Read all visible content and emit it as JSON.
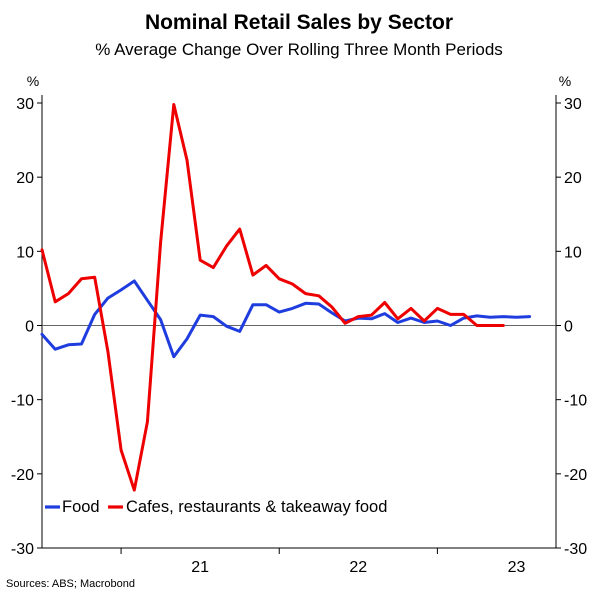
{
  "chart_data": {
    "type": "line",
    "title": "Nominal Retail Sales by Sector",
    "subtitle": "% Average Change Over Rolling Three Month Periods",
    "y_unit_left": "%",
    "y_unit_right": "%",
    "ylim": [
      -30,
      30
    ],
    "yticks": [
      30,
      20,
      10,
      0,
      -10,
      -20,
      -30
    ],
    "xlim": [
      "2020-07",
      "2023-10"
    ],
    "year_labels": [
      {
        "label": "21",
        "x": "2021-07"
      },
      {
        "label": "22",
        "x": "2022-07"
      },
      {
        "label": "23",
        "x": "2023-07"
      }
    ],
    "year_boundaries": [
      "2021-01",
      "2022-01",
      "2023-01"
    ],
    "grid": false,
    "zero_line": true,
    "legend_position": "bottom-left",
    "x": [
      "2020-07",
      "2020-08",
      "2020-09",
      "2020-10",
      "2020-11",
      "2020-12",
      "2021-01",
      "2021-02",
      "2021-03",
      "2021-04",
      "2021-05",
      "2021-06",
      "2021-07",
      "2021-08",
      "2021-09",
      "2021-10",
      "2021-11",
      "2021-12",
      "2022-01",
      "2022-02",
      "2022-03",
      "2022-04",
      "2022-05",
      "2022-06",
      "2022-07",
      "2022-08",
      "2022-09",
      "2022-10",
      "2022-11",
      "2022-12",
      "2023-01",
      "2023-02",
      "2023-03",
      "2023-04",
      "2023-05",
      "2023-06",
      "2023-07",
      "2023-08",
      "2023-09"
    ],
    "series": [
      {
        "name": "Food",
        "color": "#1f3ddf",
        "values": [
          -1.2,
          -3.2,
          -2.6,
          -2.5,
          1.5,
          3.7,
          4.8,
          6.0,
          3.4,
          0.8,
          -4.2,
          -1.8,
          1.4,
          1.2,
          -0.1,
          -0.8,
          2.8,
          2.8,
          1.8,
          2.3,
          3.0,
          2.9,
          1.7,
          0.6,
          1.0,
          0.9,
          1.6,
          0.4,
          1.0,
          0.4,
          0.6,
          0.0,
          1.0,
          1.3,
          1.1,
          1.2,
          1.1,
          1.2,
          1.3
        ]
      },
      {
        "name": "Cafes, restaurants & takeaway food",
        "color": "#ee0000",
        "values": [
          10.2,
          3.2,
          4.3,
          6.3,
          6.5,
          -3.5,
          -16.8,
          -22.2,
          -13.0,
          11.2,
          29.8,
          22.3,
          8.8,
          7.8,
          10.7,
          13.0,
          6.8,
          8.1,
          6.3,
          5.6,
          4.3,
          4.0,
          2.5,
          0.3,
          1.2,
          1.4,
          3.1,
          0.9,
          2.3,
          0.6,
          2.3,
          1.5,
          1.5,
          0.0,
          0.0,
          0.0,
          0.0,
          0.0,
          0.0
        ]
      }
    ],
    "source": "Sources: ABS; Macrobond"
  }
}
